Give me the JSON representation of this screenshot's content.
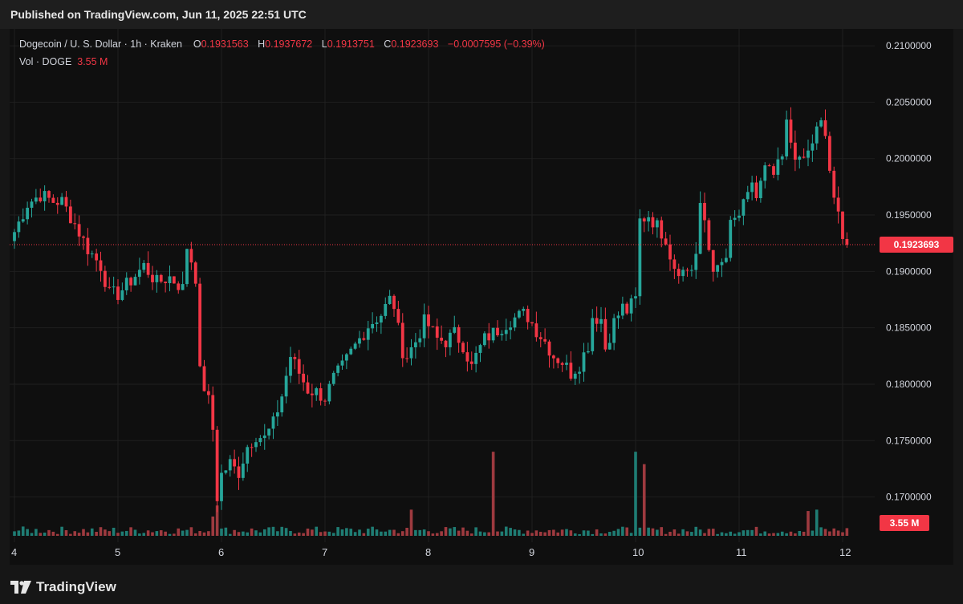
{
  "published": "Published on TradingView.com, Jun 11, 2025 22:51 UTC",
  "legend": {
    "symbol": "Dogecoin / U. S. Dollar",
    "interval": "1h",
    "exchange": "Kraken",
    "o_label": "O",
    "o_value": "0.1931563",
    "h_label": "H",
    "h_value": "0.1937672",
    "l_label": "L",
    "l_value": "0.1913751",
    "c_label": "C",
    "c_value": "0.1923693",
    "change": "−0.0007595 (−0.39%)",
    "vol_label": "Vol · DOGE",
    "vol_value": "3.55 M"
  },
  "price_tag": "0.1923693",
  "volume_tag": "3.55 M",
  "brand": "TradingView",
  "colors": {
    "up": "#26a69a",
    "down": "#f23645",
    "up_vol": "#1f7d74",
    "down_vol": "#9e3a3f",
    "axis_text": "#d1d4dc",
    "grid": "#1f1f1f"
  },
  "chart_data": {
    "type": "candlestick",
    "title": "Dogecoin / U. S. Dollar · 1h · Kraken",
    "ylim": [
      0.164,
      0.2115
    ],
    "y_ticks": [
      "0.2100000",
      "0.2050000",
      "0.2000000",
      "0.1950000",
      "0.1900000",
      "0.1850000",
      "0.1800000",
      "0.1750000",
      "0.1700000"
    ],
    "y_tick_values": [
      0.21,
      0.205,
      0.2,
      0.195,
      0.19,
      0.185,
      0.18,
      0.175,
      0.17
    ],
    "x_ticks": [
      "4",
      "5",
      "6",
      "7",
      "8",
      "9",
      "10",
      "11",
      "12"
    ],
    "x_tick_hours": [
      0,
      24,
      48,
      72,
      96,
      120,
      144,
      168,
      192
    ],
    "last_close": 0.1923693,
    "volume_max_units": 3.55,
    "series_hint": "hourly DOGE/USD OHLC from Jun 4 to Jun 11 2025, values estimated from chart",
    "close_path": [
      [
        0,
        0.1935
      ],
      [
        3,
        0.196
      ],
      [
        6,
        0.1968
      ],
      [
        9,
        0.1962
      ],
      [
        11,
        0.1962
      ],
      [
        14,
        0.1942
      ],
      [
        17,
        0.192
      ],
      [
        20,
        0.1905
      ],
      [
        22,
        0.188
      ],
      [
        24,
        0.188
      ],
      [
        27,
        0.1892
      ],
      [
        30,
        0.1905
      ],
      [
        33,
        0.189
      ],
      [
        36,
        0.1895
      ],
      [
        39,
        0.1885
      ],
      [
        40,
        0.1922
      ],
      [
        41,
        0.191
      ],
      [
        42,
        0.1895
      ],
      [
        43,
        0.181
      ],
      [
        45,
        0.1785
      ],
      [
        46,
        0.176
      ],
      [
        47,
        0.17
      ],
      [
        48,
        0.172
      ],
      [
        50,
        0.173
      ],
      [
        51,
        0.1725
      ],
      [
        52,
        0.1722
      ],
      [
        54,
        0.1745
      ],
      [
        56,
        0.1755
      ],
      [
        58,
        0.1752
      ],
      [
        60,
        0.1765
      ],
      [
        62,
        0.179
      ],
      [
        64,
        0.1825
      ],
      [
        66,
        0.181
      ],
      [
        68,
        0.1795
      ],
      [
        70,
        0.1793
      ],
      [
        72,
        0.1788
      ],
      [
        74,
        0.1805
      ],
      [
        76,
        0.1815
      ],
      [
        78,
        0.1828
      ],
      [
        80,
        0.184
      ],
      [
        82,
        0.1852
      ],
      [
        85,
        0.1862
      ],
      [
        87,
        0.1875
      ],
      [
        88,
        0.187
      ],
      [
        89,
        0.1848
      ],
      [
        90,
        0.183
      ],
      [
        91,
        0.1825
      ],
      [
        93,
        0.1838
      ],
      [
        95,
        0.1855
      ],
      [
        96,
        0.1852
      ],
      [
        98,
        0.184
      ],
      [
        100,
        0.1838
      ],
      [
        102,
        0.1845
      ],
      [
        104,
        0.1835
      ],
      [
        106,
        0.1815
      ],
      [
        107,
        0.1825
      ],
      [
        109,
        0.184
      ],
      [
        112,
        0.1848
      ],
      [
        115,
        0.1857
      ],
      [
        118,
        0.1862
      ],
      [
        119,
        0.186
      ],
      [
        121,
        0.1848
      ],
      [
        123,
        0.1838
      ],
      [
        125,
        0.1825
      ],
      [
        127,
        0.182
      ],
      [
        129,
        0.181
      ],
      [
        131,
        0.1818
      ],
      [
        133,
        0.1835
      ],
      [
        134,
        0.186
      ],
      [
        136,
        0.1858
      ],
      [
        137,
        0.1832
      ],
      [
        139,
        0.1855
      ],
      [
        141,
        0.1868
      ],
      [
        142,
        0.1865
      ],
      [
        144,
        0.1875
      ],
      [
        145,
        0.1945
      ],
      [
        147,
        0.195
      ],
      [
        149,
        0.194
      ],
      [
        151,
        0.193
      ],
      [
        152,
        0.1915
      ],
      [
        153,
        0.1905
      ],
      [
        155,
        0.19
      ],
      [
        157,
        0.1903
      ],
      [
        158,
        0.1915
      ],
      [
        159,
        0.1955
      ],
      [
        160,
        0.1945
      ],
      [
        161,
        0.192
      ],
      [
        162,
        0.1905
      ],
      [
        163,
        0.19
      ],
      [
        165,
        0.1912
      ],
      [
        166,
        0.194
      ],
      [
        168,
        0.195
      ],
      [
        170,
        0.1965
      ],
      [
        171,
        0.198
      ],
      [
        172,
        0.1965
      ],
      [
        174,
        0.199
      ],
      [
        176,
        0.1985
      ],
      [
        178,
        0.2
      ],
      [
        179,
        0.203
      ],
      [
        180,
        0.2015
      ],
      [
        182,
        0.1995
      ],
      [
        184,
        0.2005
      ],
      [
        186,
        0.2025
      ],
      [
        187,
        0.203
      ],
      [
        188,
        0.202
      ],
      [
        189,
        0.199
      ],
      [
        190,
        0.196
      ],
      [
        191,
        0.195
      ],
      [
        192,
        0.1935
      ],
      [
        193,
        0.1923693
      ]
    ],
    "volume_spikes": [
      {
        "hour": 46,
        "value": 0.7,
        "dir": "down"
      },
      {
        "hour": 47,
        "value": 1.1,
        "dir": "down"
      },
      {
        "hour": 111,
        "value": 3.05,
        "dir": "down"
      },
      {
        "hour": 144,
        "value": 3.05,
        "dir": "up"
      },
      {
        "hour": 146,
        "value": 2.6,
        "dir": "down"
      },
      {
        "hour": 92,
        "value": 0.95,
        "dir": "down"
      },
      {
        "hour": 186,
        "value": 0.95,
        "dir": "up"
      },
      {
        "hour": 184,
        "value": 0.9,
        "dir": "down"
      }
    ]
  }
}
